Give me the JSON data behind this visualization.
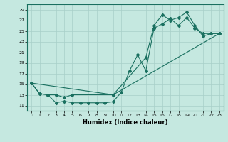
{
  "title": "",
  "xlabel": "Humidex (Indice chaleur)",
  "bg_color": "#c5e8e0",
  "line_color": "#1a7060",
  "grid_color": "#a8cfc8",
  "xlim": [
    -0.5,
    23.5
  ],
  "ylim": [
    10.0,
    30.0
  ],
  "xticks": [
    0,
    1,
    2,
    3,
    4,
    5,
    6,
    7,
    8,
    9,
    10,
    11,
    12,
    13,
    14,
    15,
    16,
    17,
    18,
    19,
    20,
    21,
    22,
    23
  ],
  "yticks": [
    11,
    13,
    15,
    17,
    19,
    21,
    23,
    25,
    27,
    29
  ],
  "line1_x": [
    0,
    1,
    2,
    3,
    4,
    5,
    6,
    7,
    8,
    9,
    10,
    11,
    12,
    13,
    14,
    15,
    16,
    17,
    18,
    19,
    20,
    21,
    22,
    23
  ],
  "line1_y": [
    15.2,
    13.2,
    13.0,
    11.5,
    11.8,
    11.5,
    11.5,
    11.5,
    11.5,
    11.5,
    11.7,
    13.5,
    17.5,
    20.5,
    17.5,
    25.5,
    26.3,
    27.3,
    26.0,
    27.5,
    25.5,
    24.5,
    24.5,
    24.5
  ],
  "line2_x": [
    0,
    1,
    2,
    3,
    4,
    5,
    10,
    14,
    15,
    16,
    17,
    18,
    19,
    20,
    21,
    22,
    23
  ],
  "line2_y": [
    15.2,
    13.2,
    13.0,
    13.0,
    12.5,
    13.0,
    13.0,
    20.0,
    26.0,
    28.0,
    27.0,
    27.5,
    28.5,
    26.0,
    24.0,
    24.5,
    24.5
  ],
  "line3_x": [
    0,
    10,
    23
  ],
  "line3_y": [
    15.2,
    13.0,
    24.5
  ]
}
